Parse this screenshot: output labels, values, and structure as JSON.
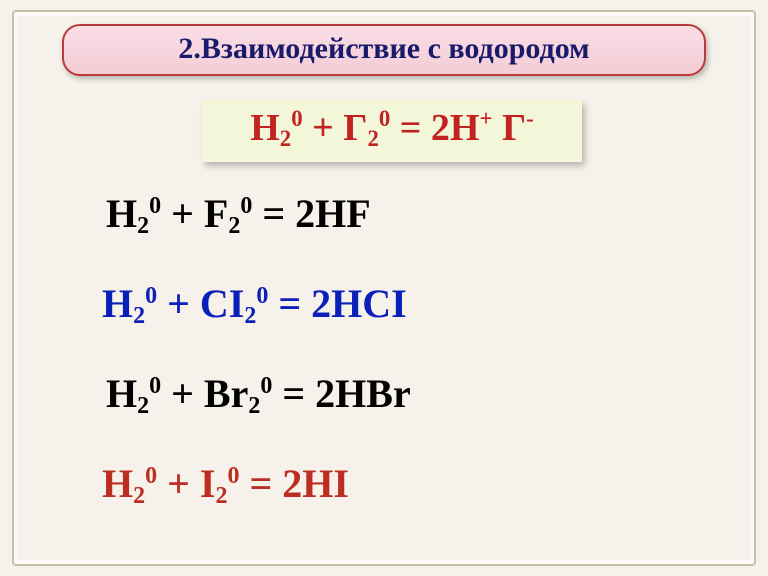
{
  "title": "2.Взаимодействие с водородом",
  "general": {
    "h": "H",
    "h_sub": "2",
    "h_sup": "0",
    "plus": " + ",
    "g": "Г",
    "g_sub": "2",
    "g_sup": "0",
    "eq": " = 2",
    "ph": "H",
    "ph_sup": "+",
    "pg": " Г",
    "pg_sup": "-"
  },
  "eqs": [
    {
      "h": "H",
      "hs": "2",
      "hp": "0",
      "pl": " + ",
      "x": "F",
      "xs": "2",
      "xp": "0",
      "eq": " = 2HF",
      "color": "#000000"
    },
    {
      "h": "H",
      "hs": "2",
      "hp": "0",
      "pl": " + ",
      "x": "CI",
      "xs": "2",
      "xp": "0",
      "eq": " = 2HCI",
      "color": "#0b1fb9"
    },
    {
      "h": "H",
      "hs": "2",
      "hp": "0",
      "pl": " + ",
      "x": "Br",
      "xs": "2",
      "xp": "0",
      "eq": " = 2HBr",
      "color": "#000000"
    },
    {
      "h": "H",
      "hs": "2",
      "hp": "0",
      "pl": " + ",
      "x": "I",
      "xs": "2",
      "xp": "0",
      "eq": " =  2HI",
      "color": "#bd2e22"
    }
  ],
  "style": {
    "background": "#f6f2eb",
    "title_bg": "#f4cdd6",
    "title_border": "#b93b39",
    "title_text": "#1a1a6a",
    "general_bg": "#f3f6d8",
    "general_text": "#c22321",
    "font_family": "Times New Roman"
  }
}
